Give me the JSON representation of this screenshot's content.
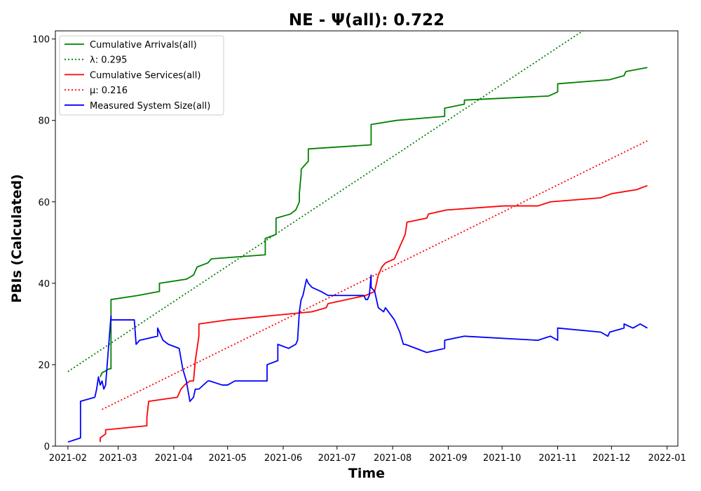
{
  "chart_data": {
    "type": "line",
    "title": "NE -  Ψ(all): 0.722",
    "xlabel": "Time",
    "ylabel": "PBIs (Calculated)",
    "xlim": [
      "2021-01-25",
      "2022-01-07"
    ],
    "ylim": [
      0,
      102
    ],
    "yticks": [
      0,
      20,
      40,
      60,
      80,
      100
    ],
    "xticks": [
      "2021-02-01",
      "2021-03-01",
      "2021-04-01",
      "2021-05-01",
      "2021-06-01",
      "2021-07-01",
      "2021-08-01",
      "2021-09-01",
      "2021-10-01",
      "2021-11-01",
      "2021-12-01",
      "2022-01-01"
    ],
    "xtick_labels": [
      "2021-02",
      "2021-03",
      "2021-04",
      "2021-05",
      "2021-06",
      "2021-07",
      "2021-08",
      "2021-09",
      "2021-10",
      "2021-11",
      "2021-12",
      "2022-01"
    ],
    "grid": false,
    "legend_position": "top-left",
    "series": [
      {
        "name": "Cumulative Arrivals(all)",
        "color": "#008000",
        "style": "solid",
        "x": [
          "2021-02-19",
          "2021-02-20",
          "2021-02-24",
          "2021-02-25",
          "2021-02-25",
          "2021-03-12",
          "2021-03-24",
          "2021-03-24",
          "2021-04-08",
          "2021-04-12",
          "2021-04-14",
          "2021-04-20",
          "2021-04-22",
          "2021-05-22",
          "2021-05-22",
          "2021-05-28",
          "2021-05-28",
          "2021-06-05",
          "2021-06-08",
          "2021-06-09",
          "2021-06-10",
          "2021-06-10",
          "2021-06-11",
          "2021-06-11",
          "2021-06-13",
          "2021-06-15",
          "2021-06-15",
          "2021-07-20",
          "2021-07-20",
          "2021-08-03",
          "2021-08-30",
          "2021-08-30",
          "2021-09-10",
          "2021-09-10",
          "2021-10-27",
          "2021-11-01",
          "2021-11-01",
          "2021-11-30",
          "2021-12-08",
          "2021-12-09",
          "2021-12-21"
        ],
        "values": [
          17,
          18,
          19,
          19,
          36,
          37,
          38,
          40,
          41,
          42,
          44,
          45,
          46,
          47,
          51,
          52,
          56,
          57,
          58,
          59,
          60,
          62,
          67,
          68,
          69,
          70,
          73,
          74,
          79,
          80,
          81,
          83,
          84,
          85,
          86,
          87,
          89,
          90,
          91,
          92,
          93
        ]
      },
      {
        "name": "λ: 0.295",
        "color": "#008000",
        "style": "dotted",
        "x": [
          "2021-02-01",
          "2021-11-15"
        ],
        "values": [
          18.3,
          102
        ]
      },
      {
        "name": "Cumulative Services(all)",
        "color": "#ff0000",
        "style": "solid",
        "x": [
          "2021-02-19",
          "2021-02-19",
          "2021-02-22",
          "2021-02-22",
          "2021-03-17",
          "2021-03-17",
          "2021-03-18",
          "2021-03-18",
          "2021-04-03",
          "2021-04-05",
          "2021-04-07",
          "2021-04-10",
          "2021-04-12",
          "2021-04-13",
          "2021-04-15",
          "2021-04-15",
          "2021-05-01",
          "2021-06-17",
          "2021-06-25",
          "2021-06-26",
          "2021-07-17",
          "2021-07-22",
          "2021-07-23",
          "2021-07-24",
          "2021-07-26",
          "2021-07-28",
          "2021-08-02",
          "2021-08-04",
          "2021-08-06",
          "2021-08-07",
          "2021-08-08",
          "2021-08-09",
          "2021-08-20",
          "2021-08-21",
          "2021-08-31",
          "2021-10-02",
          "2021-10-21",
          "2021-10-28",
          "2021-11-25",
          "2021-12-01",
          "2021-12-15",
          "2021-12-21"
        ],
        "values": [
          1,
          2,
          3,
          4,
          5,
          7,
          11,
          11,
          12,
          14,
          15,
          16,
          16,
          21,
          27,
          30,
          31,
          33,
          34,
          35,
          37,
          38,
          40,
          42,
          44,
          45,
          46,
          48,
          50,
          51,
          52,
          55,
          56,
          57,
          58,
          59,
          59,
          60,
          61,
          62,
          63,
          64
        ]
      },
      {
        "name": "μ: 0.216",
        "color": "#ff0000",
        "style": "dotted",
        "x": [
          "2021-02-20",
          "2021-12-21"
        ],
        "values": [
          9,
          75
        ]
      },
      {
        "name": "Measured System Size(all)",
        "color": "#0000ff",
        "style": "solid",
        "x": [
          "2021-02-01",
          "2021-02-08",
          "2021-02-08",
          "2021-02-16",
          "2021-02-17",
          "2021-02-18",
          "2021-02-19",
          "2021-02-20",
          "2021-02-21",
          "2021-02-22",
          "2021-02-25",
          "2021-02-25",
          "2021-03-10",
          "2021-03-11",
          "2021-03-13",
          "2021-03-23",
          "2021-03-23",
          "2021-03-24",
          "2021-03-26",
          "2021-03-29",
          "2021-04-04",
          "2021-04-06",
          "2021-04-08",
          "2021-04-10",
          "2021-04-12",
          "2021-04-13",
          "2021-04-15",
          "2021-04-20",
          "2021-04-21",
          "2021-04-28",
          "2021-05-01",
          "2021-05-05",
          "2021-05-23",
          "2021-05-23",
          "2021-05-29",
          "2021-05-29",
          "2021-06-04",
          "2021-06-08",
          "2021-06-09",
          "2021-06-10",
          "2021-06-11",
          "2021-06-12",
          "2021-06-14",
          "2021-06-15",
          "2021-06-17",
          "2021-06-22",
          "2021-06-26",
          "2021-07-16",
          "2021-07-17",
          "2021-07-18",
          "2021-07-19",
          "2021-07-20",
          "2021-07-20",
          "2021-07-22",
          "2021-07-24",
          "2021-07-27",
          "2021-07-28",
          "2021-08-02",
          "2021-08-04",
          "2021-08-05",
          "2021-08-07",
          "2021-08-08",
          "2021-08-20",
          "2021-08-30",
          "2021-08-30",
          "2021-09-10",
          "2021-10-21",
          "2021-10-28",
          "2021-11-01",
          "2021-11-01",
          "2021-11-25",
          "2021-11-29",
          "2021-11-30",
          "2021-12-08",
          "2021-12-08",
          "2021-12-13",
          "2021-12-17",
          "2021-12-21"
        ],
        "values": [
          1,
          2,
          11,
          12,
          14,
          17,
          15,
          16,
          14,
          15,
          32,
          31,
          31,
          25,
          26,
          27,
          29,
          28,
          26,
          25,
          24,
          19,
          16,
          11,
          12,
          14,
          14,
          16,
          16,
          15,
          15,
          16,
          16,
          20,
          21,
          25,
          24,
          25,
          26,
          33,
          36,
          37,
          41,
          40,
          39,
          38,
          37,
          37,
          36,
          36,
          37,
          42,
          39,
          38,
          34,
          33,
          34,
          31,
          29,
          28,
          25,
          25,
          23,
          24,
          26,
          27,
          26,
          27,
          26,
          29,
          28,
          27,
          28,
          29,
          30,
          29,
          30,
          29
        ]
      }
    ],
    "legend": [
      "Cumulative Arrivals(all)",
      "λ: 0.295",
      "Cumulative Services(all)",
      "μ: 0.216",
      "Measured System Size(all)"
    ]
  }
}
